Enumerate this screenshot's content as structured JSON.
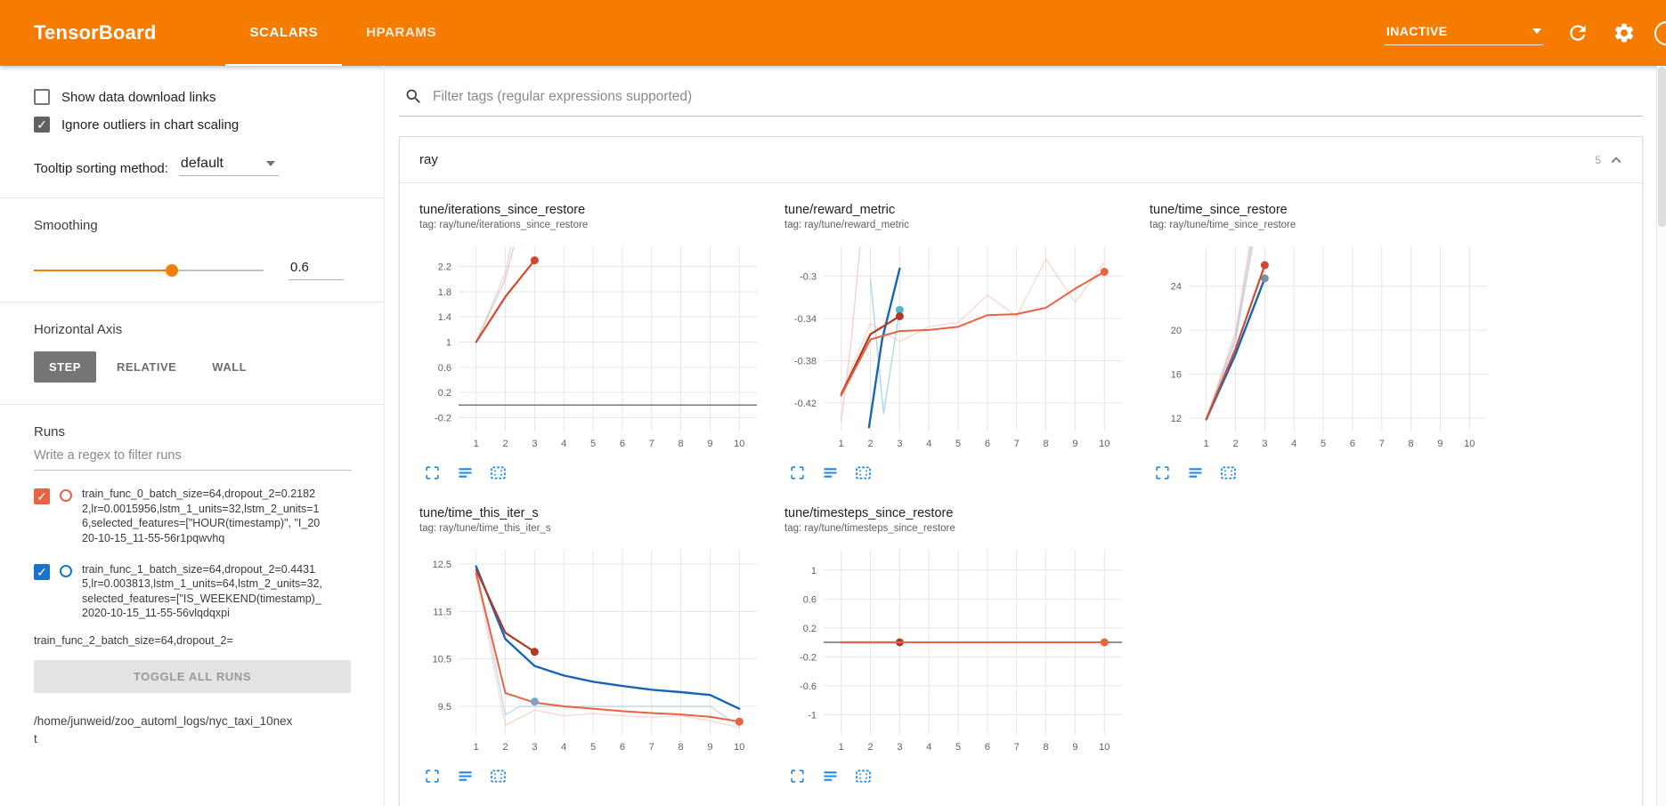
{
  "header": {
    "title": "TensorBoard",
    "tabs": [
      {
        "label": "SCALARS",
        "active": true
      },
      {
        "label": "HPARAMS",
        "active": false
      }
    ],
    "status": "INACTIVE"
  },
  "sidebar": {
    "checkboxes": [
      {
        "label": "Show data download links",
        "checked": false
      },
      {
        "label": "Ignore outliers in chart scaling",
        "checked": true
      }
    ],
    "tooltip_sorting": {
      "label": "Tooltip sorting method:",
      "value": "default"
    },
    "smoothing": {
      "label": "Smoothing",
      "value": "0.6",
      "percent": 60
    },
    "horizontal_axis": {
      "label": "Horizontal Axis",
      "options": [
        "STEP",
        "RELATIVE",
        "WALL"
      ],
      "selected": "STEP"
    },
    "runs": {
      "label": "Runs",
      "filter_placeholder": "Write a regex to filter runs",
      "items": [
        {
          "name": "train_func_0_batch_size=64,dropout_2=0.21822,lr=0.0015956,lstm_1_units=32,lstm_2_units=16,selected_features=[\"HOUR(timestamp)\", \"I_2020-10-15_11-55-56r1pqwvhq",
          "checked": true,
          "color": "#e8633f",
          "partial": false
        },
        {
          "name": "train_func_1_batch_size=64,dropout_2=0.44315,lr=0.003813,lstm_1_units=64,lstm_2_units=32,selected_features=[\"IS_WEEKEND(timestamp)_2020-10-15_11-55-56vlqdqxpi",
          "checked": true,
          "color": "#1a73c9",
          "partial": false
        },
        {
          "name": "train_func_2_batch_size=64,dropout_2=",
          "checked": true,
          "color": "#3ba2ac",
          "partial": true
        }
      ],
      "toggle_all_label": "TOGGLE ALL RUNS",
      "log_path": "/home/junweid/zoo_automl_logs/nyc_taxi_10next"
    }
  },
  "main": {
    "filter_placeholder": "Filter tags (regular expressions supported)",
    "section": {
      "title": "ray",
      "count": "5"
    }
  },
  "chart_data": [
    {
      "type": "line",
      "title": "tune/iterations_since_restore",
      "tag": "tag: ray/tune/iterations_since_restore",
      "xlim": [
        0.4,
        10.6
      ],
      "ylim": [
        -0.42,
        2.52
      ],
      "xticks": [
        1,
        2,
        3,
        4,
        5,
        6,
        7,
        8,
        9,
        10
      ],
      "yticks": [
        -0.2,
        0.2,
        0.6,
        1,
        1.4,
        1.8,
        2.2
      ],
      "zero_line": true,
      "series": [
        {
          "name": "raw-lavender",
          "color": "#c9c2d6",
          "width": 1.5,
          "opacity": 0.55,
          "points": [
            [
              1,
              1
            ],
            [
              2,
              2.1
            ],
            [
              2.4,
              3.0
            ]
          ]
        },
        {
          "name": "raw-red",
          "color": "#f2a08c",
          "width": 1.5,
          "opacity": 0.55,
          "points": [
            [
              1,
              1
            ],
            [
              2,
              2.0
            ],
            [
              2.55,
              3.0
            ]
          ]
        },
        {
          "name": "train_func_0",
          "color": "#cf4a31",
          "width": 2.2,
          "opacity": 1,
          "points": [
            [
              1,
              1
            ],
            [
              2,
              1.72
            ],
            [
              3,
              2.3
            ]
          ],
          "markers": [
            [
              3,
              2.3
            ]
          ]
        }
      ]
    },
    {
      "type": "line",
      "title": "tune/reward_metric",
      "tag": "tag: ray/tune/reward_metric",
      "xlim": [
        0.4,
        10.6
      ],
      "ylim": [
        -0.447,
        -0.272
      ],
      "xticks": [
        1,
        2,
        3,
        4,
        5,
        6,
        7,
        8,
        9,
        10
      ],
      "yticks": [
        -0.42,
        -0.38,
        -0.34,
        -0.3
      ],
      "zero_line": false,
      "series": [
        {
          "name": "raw-red-steep",
          "color": "#f2a08c",
          "width": 1.3,
          "opacity": 0.5,
          "points": [
            [
              1,
              -0.437
            ],
            [
              1.35,
              -0.36
            ],
            [
              1.65,
              -0.27
            ]
          ]
        },
        {
          "name": "raw-orange",
          "color": "#f2b7a8",
          "width": 1.3,
          "opacity": 0.55,
          "points": [
            [
              1,
              -0.41
            ],
            [
              2,
              -0.345
            ],
            [
              3,
              -0.362
            ],
            [
              4,
              -0.348
            ],
            [
              5,
              -0.344
            ],
            [
              6,
              -0.318
            ],
            [
              7,
              -0.338
            ],
            [
              8,
              -0.284
            ],
            [
              9,
              -0.325
            ],
            [
              10,
              -0.287
            ]
          ]
        },
        {
          "name": "raw-blue",
          "color": "#8ecae6",
          "width": 1.5,
          "opacity": 0.7,
          "points": [
            [
              2,
              -0.303
            ],
            [
              2.45,
              -0.43
            ],
            [
              3,
              -0.332
            ]
          ],
          "markers": [
            [
              3,
              -0.332
            ]
          ],
          "marker_color": "#53b4d4"
        },
        {
          "name": "train_func_1",
          "color": "#1766b5",
          "width": 2.4,
          "opacity": 1,
          "points": [
            [
              1.95,
              -0.443
            ],
            [
              2.4,
              -0.36
            ],
            [
              3,
              -0.293
            ]
          ]
        },
        {
          "name": "train_func_0",
          "color": "#b03a24",
          "width": 2.2,
          "opacity": 1,
          "points": [
            [
              1,
              -0.412
            ],
            [
              2,
              -0.355
            ],
            [
              3,
              -0.338
            ]
          ],
          "markers": [
            [
              3,
              -0.338
            ]
          ]
        },
        {
          "name": "train_func_2",
          "color": "#e8633f",
          "width": 2,
          "opacity": 1,
          "points": [
            [
              1,
              -0.413
            ],
            [
              2,
              -0.36
            ],
            [
              3,
              -0.352
            ],
            [
              4,
              -0.351
            ],
            [
              5,
              -0.348
            ],
            [
              6,
              -0.337
            ],
            [
              7,
              -0.336
            ],
            [
              8,
              -0.33
            ],
            [
              9,
              -0.312
            ],
            [
              10,
              -0.296
            ]
          ],
          "markers": [
            [
              10,
              -0.296
            ]
          ]
        }
      ]
    },
    {
      "type": "line",
      "title": "tune/time_since_restore",
      "tag": "tag: ray/tune/time_since_restore",
      "xlim": [
        0.4,
        10.6
      ],
      "ylim": [
        10.8,
        27.6
      ],
      "xticks": [
        1,
        2,
        3,
        4,
        5,
        6,
        7,
        8,
        9,
        10
      ],
      "yticks": [
        12,
        16,
        20,
        24
      ],
      "zero_line": false,
      "series": [
        {
          "name": "raw-lavender",
          "color": "#c9c2d6",
          "width": 1.6,
          "opacity": 0.6,
          "points": [
            [
              1,
              11.9
            ],
            [
              2,
              19.3
            ],
            [
              2.55,
              27.9
            ]
          ]
        },
        {
          "name": "raw-red",
          "color": "#f2a08c",
          "width": 1.5,
          "opacity": 0.5,
          "points": [
            [
              1,
              11.9
            ],
            [
              2,
              19.8
            ],
            [
              2.5,
              27.9
            ]
          ]
        },
        {
          "name": "raw-blue",
          "color": "#9fc3e8",
          "width": 1.5,
          "opacity": 0.6,
          "points": [
            [
              1,
              11.9
            ],
            [
              2,
              19.0
            ],
            [
              2.6,
              27.9
            ]
          ]
        },
        {
          "name": "train_func_1",
          "color": "#1766b5",
          "width": 2.4,
          "opacity": 1,
          "points": [
            [
              1,
              11.9
            ],
            [
              2,
              17.8
            ],
            [
              3,
              24.7
            ]
          ],
          "markers": [
            [
              3,
              24.7
            ]
          ],
          "marker_color": "#7191ad"
        },
        {
          "name": "train_func_0",
          "color": "#cf4a31",
          "width": 2.2,
          "opacity": 1,
          "points": [
            [
              1,
              11.9
            ],
            [
              2,
              18.3
            ],
            [
              3,
              25.9
            ]
          ],
          "markers": [
            [
              3,
              25.9
            ]
          ]
        }
      ]
    },
    {
      "type": "line",
      "title": "tune/time_this_iter_s",
      "tag": "tag: ray/tune/time_this_iter_s",
      "xlim": [
        0.4,
        10.6
      ],
      "ylim": [
        8.9,
        12.8
      ],
      "xticks": [
        1,
        2,
        3,
        4,
        5,
        6,
        7,
        8,
        9,
        10
      ],
      "yticks": [
        9.5,
        10.5,
        11.5,
        12.5
      ],
      "zero_line": false,
      "series": [
        {
          "name": "raw-blue",
          "color": "#9fc3e8",
          "width": 1.5,
          "opacity": 0.55,
          "points": [
            [
              1,
              12.45
            ],
            [
              2,
              9.32
            ],
            [
              2.5,
              9.5
            ],
            [
              9,
              9.5
            ],
            [
              10,
              9.08
            ]
          ]
        },
        {
          "name": "raw-orange",
          "color": "#f2b7a8",
          "width": 1.5,
          "opacity": 0.5,
          "points": [
            [
              1,
              12.3
            ],
            [
              2,
              9.1
            ],
            [
              3,
              9.42
            ],
            [
              4,
              9.3
            ],
            [
              5,
              9.35
            ],
            [
              6,
              9.3
            ],
            [
              7,
              9.27
            ],
            [
              8,
              9.3
            ],
            [
              9,
              9.2
            ],
            [
              10,
              9.05
            ]
          ]
        },
        {
          "name": "train_func_1_smooth",
          "color": "#1766b5",
          "width": 2.4,
          "opacity": 1,
          "points": [
            [
              1,
              12.45
            ],
            [
              2,
              10.92
            ],
            [
              3,
              10.35
            ],
            [
              4,
              10.15
            ],
            [
              5,
              10.02
            ],
            [
              6,
              9.93
            ],
            [
              7,
              9.85
            ],
            [
              8,
              9.8
            ],
            [
              9,
              9.74
            ],
            [
              10,
              9.45
            ]
          ]
        },
        {
          "name": "train_func_0",
          "color": "#b03a24",
          "width": 2.2,
          "opacity": 1,
          "points": [
            [
              1,
              12.38
            ],
            [
              2,
              11.05
            ],
            [
              3,
              10.65
            ]
          ],
          "markers": [
            [
              3,
              10.65
            ]
          ]
        },
        {
          "name": "train_func_2",
          "color": "#e8633f",
          "width": 2,
          "opacity": 1,
          "points": [
            [
              1,
              12.3
            ],
            [
              2,
              9.78
            ],
            [
              3,
              9.58
            ],
            [
              4,
              9.5
            ],
            [
              5,
              9.45
            ],
            [
              6,
              9.4
            ],
            [
              7,
              9.36
            ],
            [
              8,
              9.33
            ],
            [
              9,
              9.28
            ],
            [
              10,
              9.18
            ]
          ],
          "markers": [
            [
              10,
              9.18
            ]
          ]
        },
        {
          "name": "train_func_1_end",
          "color": "#7da4c0",
          "width": 0,
          "opacity": 1,
          "points": [],
          "markers": [
            [
              3,
              9.6
            ]
          ]
        }
      ]
    },
    {
      "type": "line",
      "title": "tune/timesteps_since_restore",
      "tag": "tag: ray/tune/timesteps_since_restore",
      "xlim": [
        0.4,
        10.6
      ],
      "ylim": [
        -1.28,
        1.28
      ],
      "xticks": [
        1,
        2,
        3,
        4,
        5,
        6,
        7,
        8,
        9,
        10
      ],
      "yticks": [
        -1,
        -0.6,
        -0.2,
        0.2,
        0.6,
        1
      ],
      "zero_line": true,
      "series": [
        {
          "name": "train_func_0",
          "color": "#b03a24",
          "width": 2.2,
          "opacity": 1,
          "points": [
            [
              1,
              0
            ],
            [
              3,
              0
            ]
          ],
          "markers": [
            [
              3,
              0
            ]
          ]
        },
        {
          "name": "train_func_2",
          "color": "#e8633f",
          "width": 2,
          "opacity": 1,
          "points": [
            [
              1,
              0
            ],
            [
              10,
              0
            ]
          ],
          "markers": [
            [
              10,
              0
            ]
          ]
        }
      ]
    }
  ]
}
